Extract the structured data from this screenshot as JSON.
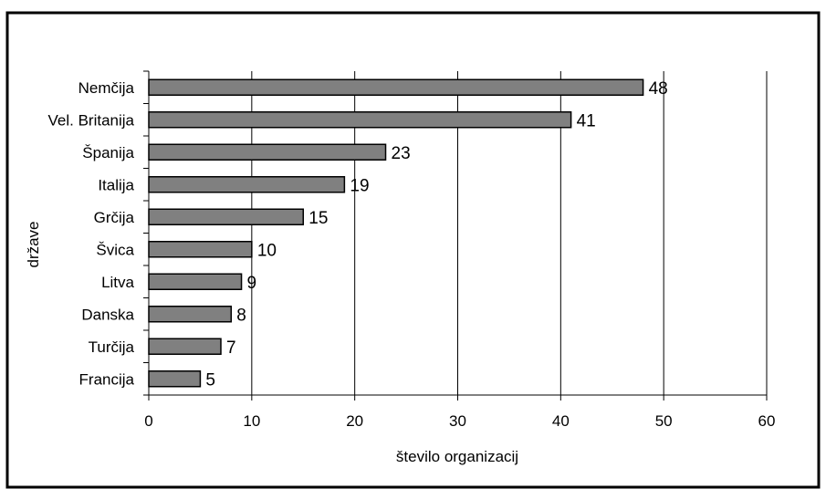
{
  "chart_data": {
    "type": "bar",
    "orientation": "horizontal",
    "categories": [
      "Nemčija",
      "Vel. Britanija",
      "Španija",
      "Italija",
      "Grčija",
      "Švica",
      "Litva",
      "Danska",
      "Turčija",
      "Francija"
    ],
    "values": [
      48,
      41,
      23,
      19,
      15,
      10,
      9,
      8,
      7,
      5
    ],
    "xlabel": "število organizacij",
    "ylabel": "države",
    "xlim": [
      0,
      60
    ],
    "x_ticks": [
      "0",
      "10",
      "20",
      "30",
      "40",
      "50",
      "60"
    ],
    "grid": "vertical",
    "legend": "none",
    "colors": {
      "bar_fill": "#808080",
      "bar_stroke": "#000000",
      "gridline": "#000000",
      "frame": "#000000"
    }
  }
}
